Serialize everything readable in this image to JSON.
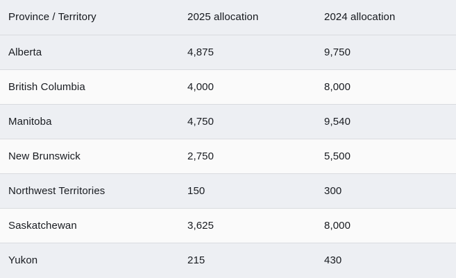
{
  "table": {
    "columns": [
      {
        "key": "province",
        "label": "Province / Territory"
      },
      {
        "key": "alloc2025",
        "label": "2025 allocation"
      },
      {
        "key": "alloc2024",
        "label": "2024 allocation"
      }
    ],
    "rows": [
      {
        "province": "Alberta",
        "alloc2025": "4,875",
        "alloc2024": "9,750"
      },
      {
        "province": "British Columbia",
        "alloc2025": "4,000",
        "alloc2024": "8,000"
      },
      {
        "province": "Manitoba",
        "alloc2025": "4,750",
        "alloc2024": "9,540"
      },
      {
        "province": "New Brunswick",
        "alloc2025": "2,750",
        "alloc2024": "5,500"
      },
      {
        "province": "Northwest Territories",
        "alloc2025": "150",
        "alloc2024": "300"
      },
      {
        "province": "Saskatchewan",
        "alloc2025": "3,625",
        "alloc2024": "8,000"
      },
      {
        "province": "Yukon",
        "alloc2025": "215",
        "alloc2024": "430"
      }
    ]
  },
  "chart_data": {
    "type": "table",
    "title": "",
    "columns": [
      "Province / Territory",
      "2025 allocation",
      "2024 allocation"
    ],
    "rows": [
      [
        "Alberta",
        4875,
        9750
      ],
      [
        "British Columbia",
        4000,
        8000
      ],
      [
        "Manitoba",
        4750,
        9540
      ],
      [
        "New Brunswick",
        2750,
        5500
      ],
      [
        "Northwest Territories",
        150,
        300
      ],
      [
        "Saskatchewan",
        3625,
        8000
      ],
      [
        "Yukon",
        215,
        430
      ]
    ]
  },
  "colors": {
    "header_background": "#edeff3",
    "row_gray_background": "#edeff3",
    "row_light_background": "#fafafa",
    "divider": "#d9dbdf",
    "text": "#181b20"
  }
}
